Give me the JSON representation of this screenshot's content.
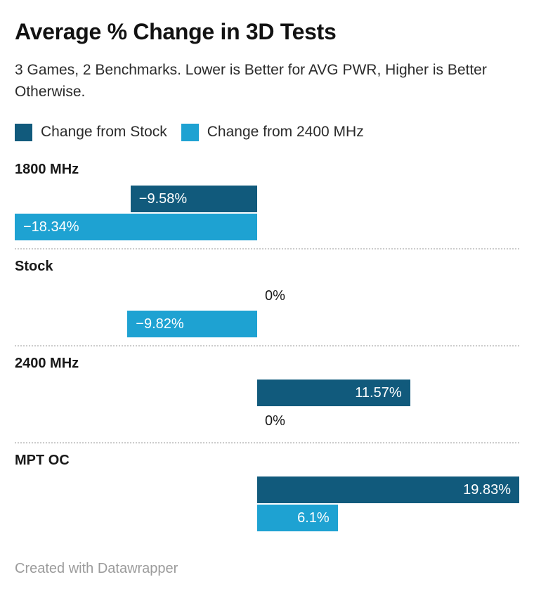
{
  "header": {
    "title": "Average % Change in 3D Tests",
    "subtitle": "3 Games, 2 Benchmarks. Lower is Better for AVG PWR, Higher is Better Otherwise."
  },
  "legend": {
    "items": [
      {
        "label": "Change from Stock",
        "color": "#115a7c"
      },
      {
        "label": "Change from 2400 MHz",
        "color": "#1ea2d2"
      }
    ]
  },
  "chart_data": {
    "type": "bar",
    "orientation": "horizontal",
    "title": "Average % Change in 3D Tests",
    "subtitle": "3 Games, 2 Benchmarks. Lower is Better for AVG PWR, Higher is Better Otherwise.",
    "xlabel": "",
    "ylabel": "",
    "categories": [
      "1800 MHz",
      "Stock",
      "2400 MHz",
      "MPT OC"
    ],
    "series": [
      {
        "name": "Change from Stock",
        "color": "#115a7c",
        "values": [
          -9.58,
          0,
          11.57,
          19.83
        ],
        "labels": [
          "−9.58%",
          "0%",
          "11.57%",
          "19.83%"
        ]
      },
      {
        "name": "Change from 2400 MHz",
        "color": "#1ea2d2",
        "values": [
          -18.34,
          -9.82,
          0,
          6.1
        ],
        "labels": [
          "−18.34%",
          "−9.82%",
          "0%",
          "6.1%"
        ]
      }
    ],
    "xlim": [
      -18.34,
      19.83
    ],
    "grid": false,
    "legend_position": "top",
    "value_labels_inside_bars": true,
    "separator_between_categories": "dotted"
  },
  "footer": {
    "credit": "Created with Datawrapper"
  }
}
